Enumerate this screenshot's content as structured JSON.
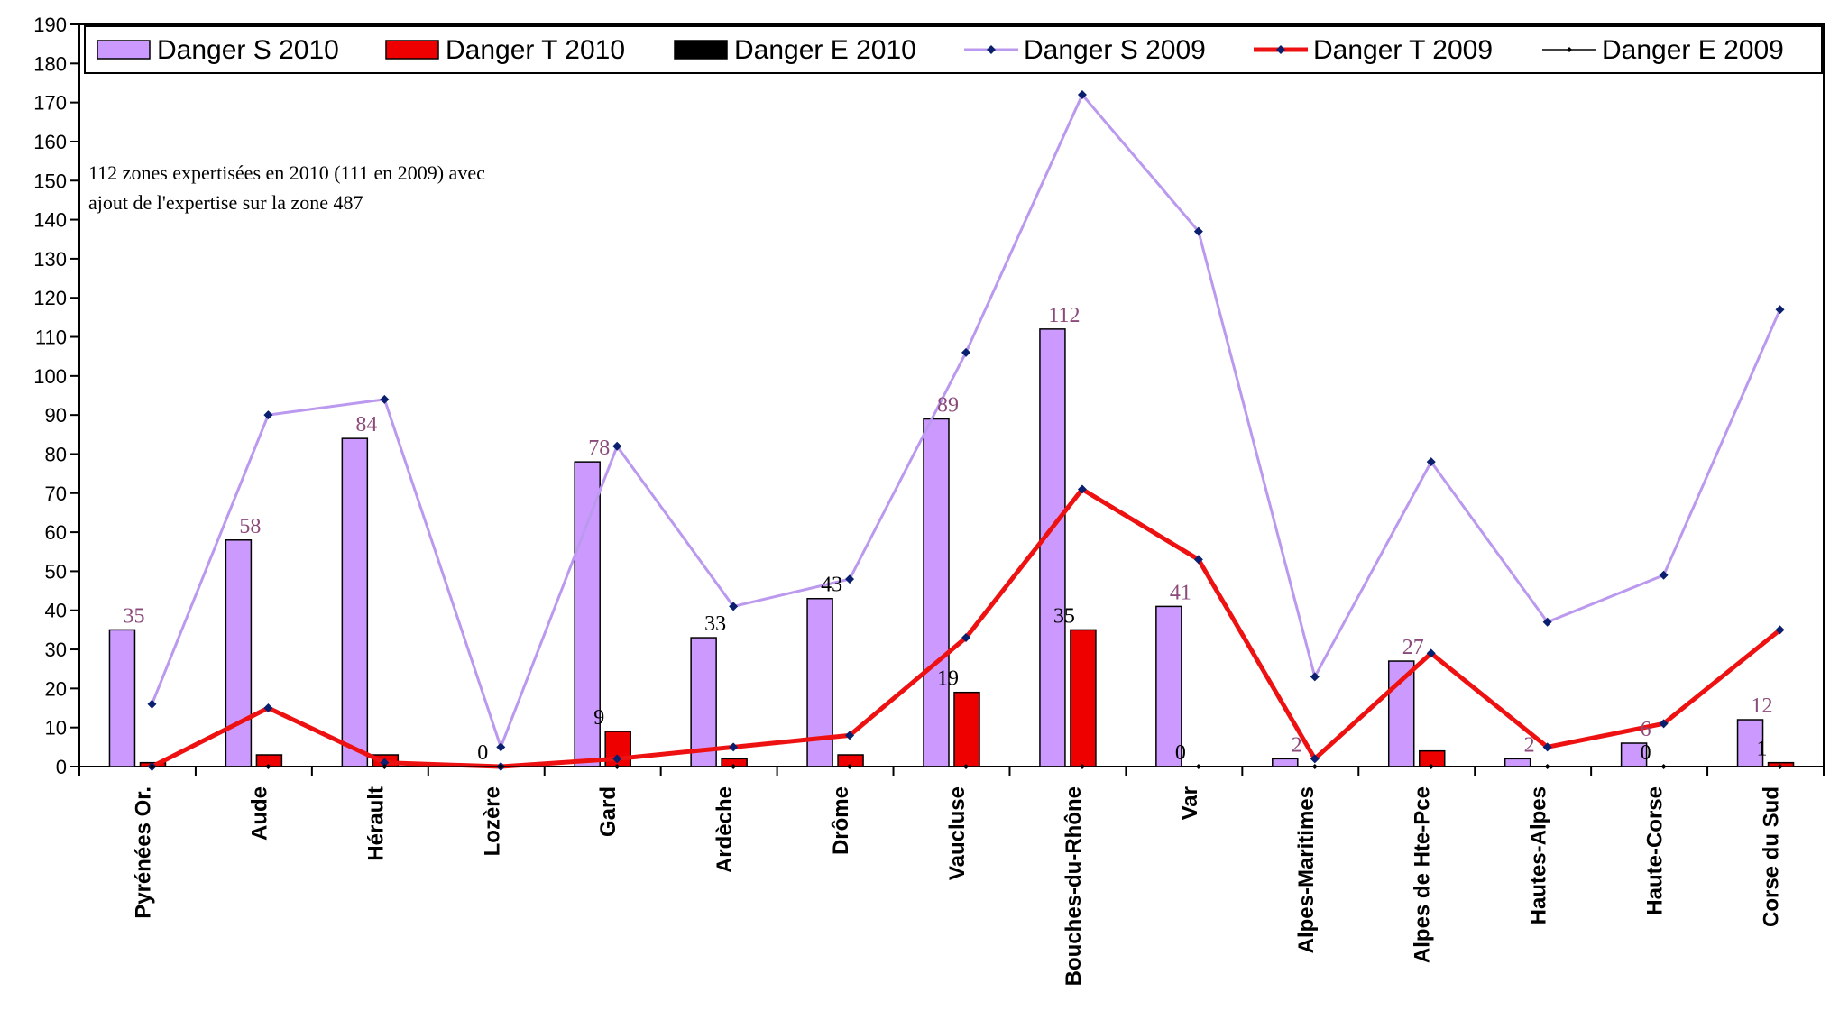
{
  "chart_data": {
    "type": "bar",
    "categories": [
      "Pyrénées Or.",
      "Aude",
      "Hérault",
      "Lozère",
      "Gard",
      "Ardèche",
      "Drôme",
      "Vaucluse",
      "Bouches-du-Rhône",
      "Var",
      "Alpes-Maritimes",
      "Alpes de Hte-Pce",
      "Hautes-Alpes",
      "Haute-Corse",
      "Corse du Sud"
    ],
    "ylim": [
      0,
      190
    ],
    "yticks": [
      0,
      10,
      20,
      30,
      40,
      50,
      60,
      70,
      80,
      90,
      100,
      110,
      120,
      130,
      140,
      150,
      160,
      170,
      180,
      190
    ],
    "title": "",
    "xlabel": "",
    "ylabel": "",
    "legend_position": "top",
    "annotation": [
      "112 zones expertisées en 2010 (111  en 2009)  avec",
      "ajout de l'expertise sur la zone  487"
    ],
    "bar_series": [
      {
        "name": "Danger S 2010",
        "color": "#cc99ff",
        "values": [
          35,
          58,
          84,
          0,
          78,
          33,
          43,
          89,
          112,
          41,
          2,
          27,
          2,
          6,
          12
        ]
      },
      {
        "name": "Danger T 2010",
        "color": "#ee0000",
        "values": [
          1,
          3,
          3,
          0,
          9,
          2,
          3,
          19,
          35,
          0,
          0,
          4,
          0,
          0,
          1
        ]
      },
      {
        "name": "Danger E 2010",
        "color": "#000000",
        "values": [
          0,
          0,
          0,
          0,
          0,
          0,
          0,
          0,
          0,
          0,
          0,
          0,
          0,
          0,
          0
        ]
      }
    ],
    "line_series": [
      {
        "name": "Danger S 2009",
        "color": "#bb99ee",
        "marker_color": "#0a1f6e",
        "values": [
          16,
          90,
          94,
          5,
          82,
          41,
          48,
          106,
          172,
          137,
          23,
          78,
          37,
          49,
          117
        ]
      },
      {
        "name": "Danger T 2009",
        "color": "#ee1111",
        "marker_color": "#0a1f6e",
        "values": [
          0,
          15,
          1,
          0,
          2,
          5,
          8,
          33,
          71,
          53,
          2,
          29,
          5,
          11,
          35
        ]
      },
      {
        "name": "Danger  E 2009",
        "color": "#000000",
        "marker_color": "#000000",
        "values": [
          0,
          0,
          0,
          0,
          0,
          0,
          0,
          0,
          0,
          0,
          0,
          0,
          0,
          0,
          0
        ]
      }
    ],
    "data_labels": [
      {
        "category_index": 0,
        "text": "35",
        "value": 35,
        "color": "#8b4a7a"
      },
      {
        "category_index": 1,
        "text": "58",
        "value": 58,
        "color": "#8b4a7a"
      },
      {
        "category_index": 2,
        "text": "84",
        "value": 84,
        "color": "#8b4a7a"
      },
      {
        "category_index": 3,
        "text": "0",
        "value": 0,
        "color": "#000000"
      },
      {
        "category_index": 4,
        "text": "78",
        "value": 78,
        "color": "#8b4a7a"
      },
      {
        "category_index": 4,
        "text": "9",
        "value": 9,
        "color": "#000000"
      },
      {
        "category_index": 5,
        "text": "33",
        "value": 33,
        "color": "#000000"
      },
      {
        "category_index": 6,
        "text": "43",
        "value": 43,
        "color": "#000000"
      },
      {
        "category_index": 7,
        "text": "89",
        "value": 89,
        "color": "#8b4a7a"
      },
      {
        "category_index": 7,
        "text": "19",
        "value": 19,
        "color": "#000000"
      },
      {
        "category_index": 8,
        "text": "112",
        "value": 112,
        "color": "#8b4a7a"
      },
      {
        "category_index": 8,
        "text": "35",
        "value": 35,
        "color": "#000000"
      },
      {
        "category_index": 9,
        "text": "41",
        "value": 41,
        "color": "#8b4a7a"
      },
      {
        "category_index": 9,
        "text": "0",
        "value": 0,
        "color": "#000000"
      },
      {
        "category_index": 10,
        "text": "2",
        "value": 2,
        "color": "#8b4a7a"
      },
      {
        "category_index": 11,
        "text": "27",
        "value": 27,
        "color": "#8b4a7a"
      },
      {
        "category_index": 12,
        "text": "2",
        "value": 2,
        "color": "#8b4a7a"
      },
      {
        "category_index": 13,
        "text": "6",
        "value": 6,
        "color": "#8b4a7a"
      },
      {
        "category_index": 13,
        "text": "0",
        "value": 0,
        "color": "#000000"
      },
      {
        "category_index": 14,
        "text": "12",
        "value": 12,
        "color": "#8b4a7a"
      },
      {
        "category_index": 14,
        "text": "1",
        "value": 1,
        "color": "#000000"
      }
    ]
  }
}
